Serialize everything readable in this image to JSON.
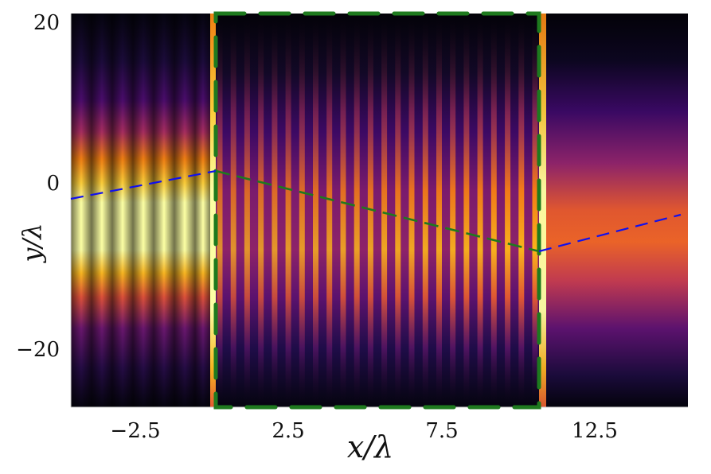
{
  "chart_data": {
    "type": "heatmap",
    "title": "",
    "xlabel": "x/λ",
    "ylabel": "y/λ",
    "colormap": "inferno",
    "xlim": [
      -4.6,
      15.5
    ],
    "ylim": [
      -27.3,
      21.2
    ],
    "x_ticks": [
      -2.5,
      2.5,
      7.5,
      12.5
    ],
    "x_tick_labels": [
      "−2.5",
      "2.5",
      "7.5",
      "12.5"
    ],
    "y_ticks": [
      20,
      0,
      -20
    ],
    "y_tick_labels": [
      "20",
      "0",
      "−20"
    ],
    "grid": false,
    "legend": null,
    "regions": [
      {
        "name": "incident beam region",
        "x_range": [
          -4.6,
          0.1
        ],
        "description": "bright Gaussian beam centered near y≈-1 with standing-wave fringes (~7 lobes)"
      },
      {
        "name": "slab (green dashed box)",
        "x_range": [
          0.1,
          10.7
        ],
        "y_range": [
          -27.3,
          21.2
        ],
        "description": "vertical interference fringes (~24 stripes), strongest near y≈-8"
      },
      {
        "name": "transmitted region",
        "x_range": [
          10.7,
          15.5
        ],
        "description": "smooth broad beam centered near y≈-4"
      }
    ],
    "overlays": [
      {
        "name": "incident ray",
        "style": "dashed",
        "color": "#1010ee",
        "points": [
          [
            -4.6,
            -2.0
          ],
          [
            0.1,
            1.4
          ]
        ]
      },
      {
        "name": "refracted ray",
        "style": "dashed",
        "color": "#1e7a1e",
        "points": [
          [
            0.1,
            1.4
          ],
          [
            10.7,
            -8.3
          ]
        ]
      },
      {
        "name": "outgoing ray",
        "style": "dashed",
        "color": "#1010ee",
        "points": [
          [
            10.7,
            -8.3
          ],
          [
            15.3,
            -3.8
          ]
        ]
      },
      {
        "name": "slab boundary",
        "style": "thick dashed rectangle",
        "color": "#1e7a1e",
        "x_range": [
          0.1,
          10.7
        ],
        "y_range": [
          -27.3,
          21.2
        ]
      }
    ]
  },
  "axes": {
    "xlabel": "x/λ",
    "ylabel": "y/λ",
    "xticks": [
      "−2.5",
      "2.5",
      "7.5",
      "12.5"
    ],
    "yticks": [
      "20",
      "0",
      "−20"
    ]
  },
  "colors": {
    "slab_outline": "#1e7a1e",
    "ray_blue": "#1010ee",
    "ray_green": "#1e7a1e"
  }
}
